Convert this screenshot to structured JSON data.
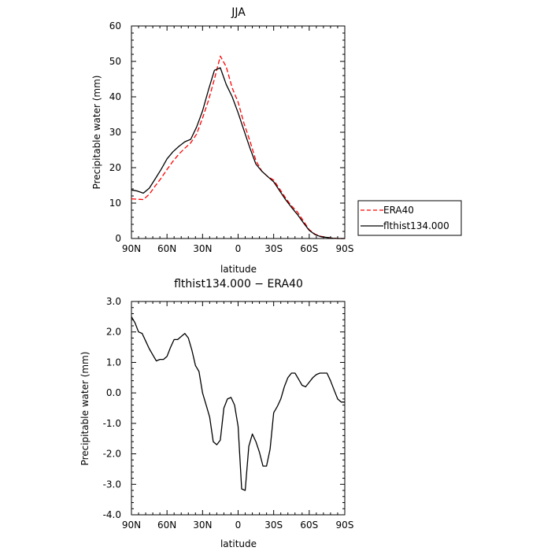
{
  "chart_data": [
    {
      "type": "line",
      "title": "JJA",
      "xlabel": "latitude",
      "ylabel": "Precipitable water (mm)",
      "xlim": [
        90,
        -90
      ],
      "ylim": [
        0,
        60
      ],
      "x_ticks": [
        90,
        60,
        30,
        0,
        -30,
        -60,
        -90
      ],
      "x_tick_labels": [
        "90N",
        "60N",
        "30N",
        "0",
        "30S",
        "60S",
        "90S"
      ],
      "y_ticks": [
        0,
        10,
        20,
        30,
        40,
        50,
        60
      ],
      "y_tick_labels": [
        "0",
        "10",
        "20",
        "30",
        "40",
        "50",
        "60"
      ],
      "grid": false,
      "legend_placement": "right-outside",
      "series": [
        {
          "name": "ERA40",
          "color": "#ff0000",
          "dash": "dashed",
          "x": [
            90,
            85,
            80,
            75,
            70,
            65,
            60,
            55,
            50,
            45,
            40,
            35,
            30,
            25,
            20,
            15,
            10,
            5,
            0,
            -5,
            -10,
            -15,
            -20,
            -25,
            -30,
            -35,
            -40,
            -45,
            -50,
            -55,
            -60,
            -65,
            -70,
            -75,
            -80,
            -85,
            -90
          ],
          "y": [
            11.2,
            11.1,
            11.0,
            12.5,
            14.8,
            17.0,
            19.5,
            21.8,
            23.8,
            25.5,
            27.0,
            29.5,
            34.0,
            39.0,
            45.0,
            51.5,
            48.5,
            42.5,
            38.5,
            32.5,
            27.5,
            22.0,
            19.0,
            17.5,
            16.5,
            14.0,
            11.5,
            9.2,
            7.5,
            5.0,
            2.5,
            1.2,
            0.6,
            0.3,
            0.1,
            0.0,
            0.0
          ]
        },
        {
          "name": "flthist134.000",
          "color": "#000000",
          "dash": "solid",
          "x": [
            90,
            85,
            80,
            75,
            70,
            65,
            60,
            55,
            50,
            45,
            40,
            35,
            30,
            25,
            20,
            15,
            10,
            5,
            0,
            -5,
            -10,
            -15,
            -20,
            -25,
            -30,
            -35,
            -40,
            -45,
            -50,
            -55,
            -60,
            -65,
            -70,
            -75,
            -80,
            -85,
            -90
          ],
          "y": [
            13.7,
            13.4,
            12.8,
            14.2,
            16.8,
            19.5,
            22.5,
            24.5,
            26.0,
            27.3,
            28.0,
            31.5,
            36.0,
            42.0,
            47.5,
            48.2,
            43.5,
            40.0,
            35.5,
            30.5,
            25.5,
            21.0,
            19.0,
            17.5,
            16.0,
            13.5,
            11.0,
            8.8,
            6.8,
            4.5,
            2.3,
            1.1,
            0.5,
            0.3,
            0.1,
            0.0,
            0.0
          ]
        }
      ]
    },
    {
      "type": "line",
      "title": "flthist134.000 − ERA40",
      "xlabel": "latitude",
      "ylabel": "Precipitable water (mm)",
      "xlim": [
        90,
        -90
      ],
      "ylim": [
        -4.0,
        3.0
      ],
      "x_ticks": [
        90,
        60,
        30,
        0,
        -30,
        -60,
        -90
      ],
      "x_tick_labels": [
        "90N",
        "60N",
        "30N",
        "0",
        "30S",
        "60S",
        "90S"
      ],
      "y_ticks": [
        3,
        2,
        1,
        0,
        -1,
        -2,
        -3,
        -4
      ],
      "y_tick_labels": [
        "3.0",
        "2.0",
        "1.0",
        "0.0",
        "-1.0",
        "-2.0",
        "-3.0",
        "-4.0"
      ],
      "grid": false,
      "series": [
        {
          "color": "#000000",
          "dash": "solid",
          "x": [
            90,
            87,
            84,
            81,
            78,
            75,
            72,
            69,
            66,
            63,
            60,
            57,
            54,
            51,
            48,
            45,
            42,
            39,
            36,
            33,
            30,
            27,
            24,
            21,
            18,
            15,
            12,
            9,
            6,
            3,
            0,
            -3,
            -6,
            -9,
            -12,
            -15,
            -18,
            -21,
            -24,
            -27,
            -30,
            -33,
            -36,
            -39,
            -42,
            -45,
            -48,
            -51,
            -54,
            -57,
            -60,
            -63,
            -66,
            -69,
            -72,
            -75,
            -78,
            -81,
            -84,
            -87,
            -90
          ],
          "y": [
            2.5,
            2.3,
            2.0,
            1.95,
            1.7,
            1.45,
            1.25,
            1.05,
            1.1,
            1.1,
            1.2,
            1.5,
            1.75,
            1.75,
            1.85,
            1.95,
            1.8,
            1.4,
            0.9,
            0.7,
            0.0,
            -0.4,
            -0.8,
            -1.6,
            -1.7,
            -1.55,
            -0.5,
            -0.2,
            -0.15,
            -0.4,
            -1.1,
            -3.15,
            -3.2,
            -1.75,
            -1.35,
            -1.6,
            -1.95,
            -2.4,
            -2.4,
            -1.85,
            -0.65,
            -0.45,
            -0.2,
            0.2,
            0.5,
            0.65,
            0.65,
            0.45,
            0.25,
            0.2,
            0.35,
            0.5,
            0.6,
            0.65,
            0.65,
            0.65,
            0.4,
            0.1,
            -0.2,
            -0.3,
            -0.3
          ]
        }
      ]
    }
  ]
}
